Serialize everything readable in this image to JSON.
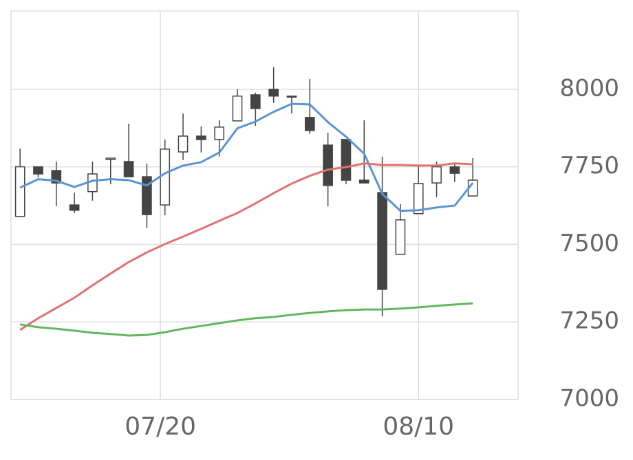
{
  "chart_data": {
    "type": "candlestick",
    "x": [
      0,
      1,
      2,
      3,
      4,
      5,
      6,
      7,
      8,
      9,
      10,
      11,
      12,
      13,
      14,
      15,
      16,
      17,
      18,
      19,
      20,
      21,
      22,
      23,
      24,
      25
    ],
    "open": [
      7590,
      7750,
      7738,
      7627,
      7670,
      7774,
      7767,
      7718,
      7627,
      7798,
      7849,
      7838,
      7898,
      7982,
      8000,
      7978,
      7909,
      7820,
      7838,
      7707,
      7667,
      7468,
      7599,
      7698,
      7750,
      7656
    ],
    "high": [
      7809,
      7750,
      7767,
      7667,
      7767,
      7778,
      7889,
      7760,
      7838,
      7922,
      7880,
      7900,
      8000,
      7989,
      8071,
      7978,
      8033,
      7860,
      7838,
      7900,
      7783,
      7630,
      7756,
      7767,
      7763,
      7778
    ],
    "low": [
      7590,
      7716,
      7623,
      7601,
      7641,
      7694,
      7718,
      7552,
      7594,
      7772,
      7796,
      7783,
      7898,
      7882,
      7956,
      7922,
      7856,
      7623,
      7694,
      7698,
      7268,
      7468,
      7599,
      7652,
      7701,
      7656
    ],
    "close": [
      7750,
      7727,
      7698,
      7610,
      7727,
      7778,
      7718,
      7596,
      7807,
      7849,
      7838,
      7878,
      7978,
      7938,
      7978,
      7976,
      7867,
      7690,
      7707,
      7698,
      7355,
      7579,
      7696,
      7750,
      7729,
      7707
    ],
    "up_color": "#ffffff",
    "down_color": "#444444",
    "candle_edge": "#444444",
    "series": [
      {
        "type": "line",
        "color": "#5b93d3",
        "values": [
          7683,
          7710,
          7705,
          7685,
          7705,
          7710,
          7707,
          7690,
          7729,
          7754,
          7765,
          7796,
          7874,
          7896,
          7927,
          7953,
          7951,
          7894,
          7847,
          7792,
          7663,
          7608,
          7610,
          7619,
          7625,
          7698
        ]
      },
      {
        "type": "line",
        "color": "#e07272",
        "values": [
          7224,
          7262,
          7295,
          7328,
          7368,
          7406,
          7443,
          7474,
          7501,
          7525,
          7550,
          7576,
          7601,
          7632,
          7665,
          7696,
          7721,
          7741,
          7749,
          7761,
          7756,
          7756,
          7754,
          7754,
          7761,
          7758
        ]
      },
      {
        "type": "line",
        "color": "#62b65c",
        "values": [
          7242,
          7233,
          7228,
          7222,
          7215,
          7211,
          7206,
          7208,
          7217,
          7228,
          7237,
          7246,
          7255,
          7262,
          7266,
          7273,
          7279,
          7284,
          7288,
          7290,
          7290,
          7293,
          7297,
          7302,
          7306,
          7310
        ]
      }
    ],
    "xlim": [
      -0.5,
      27.5
    ],
    "xticks": [
      {
        "value": 7.75,
        "label": "07/20"
      },
      {
        "value": 22,
        "label": "08/10"
      }
    ],
    "ylim": [
      7000,
      8250
    ],
    "yticks": [
      7000,
      7250,
      7500,
      7750,
      8000
    ],
    "grid": true
  }
}
